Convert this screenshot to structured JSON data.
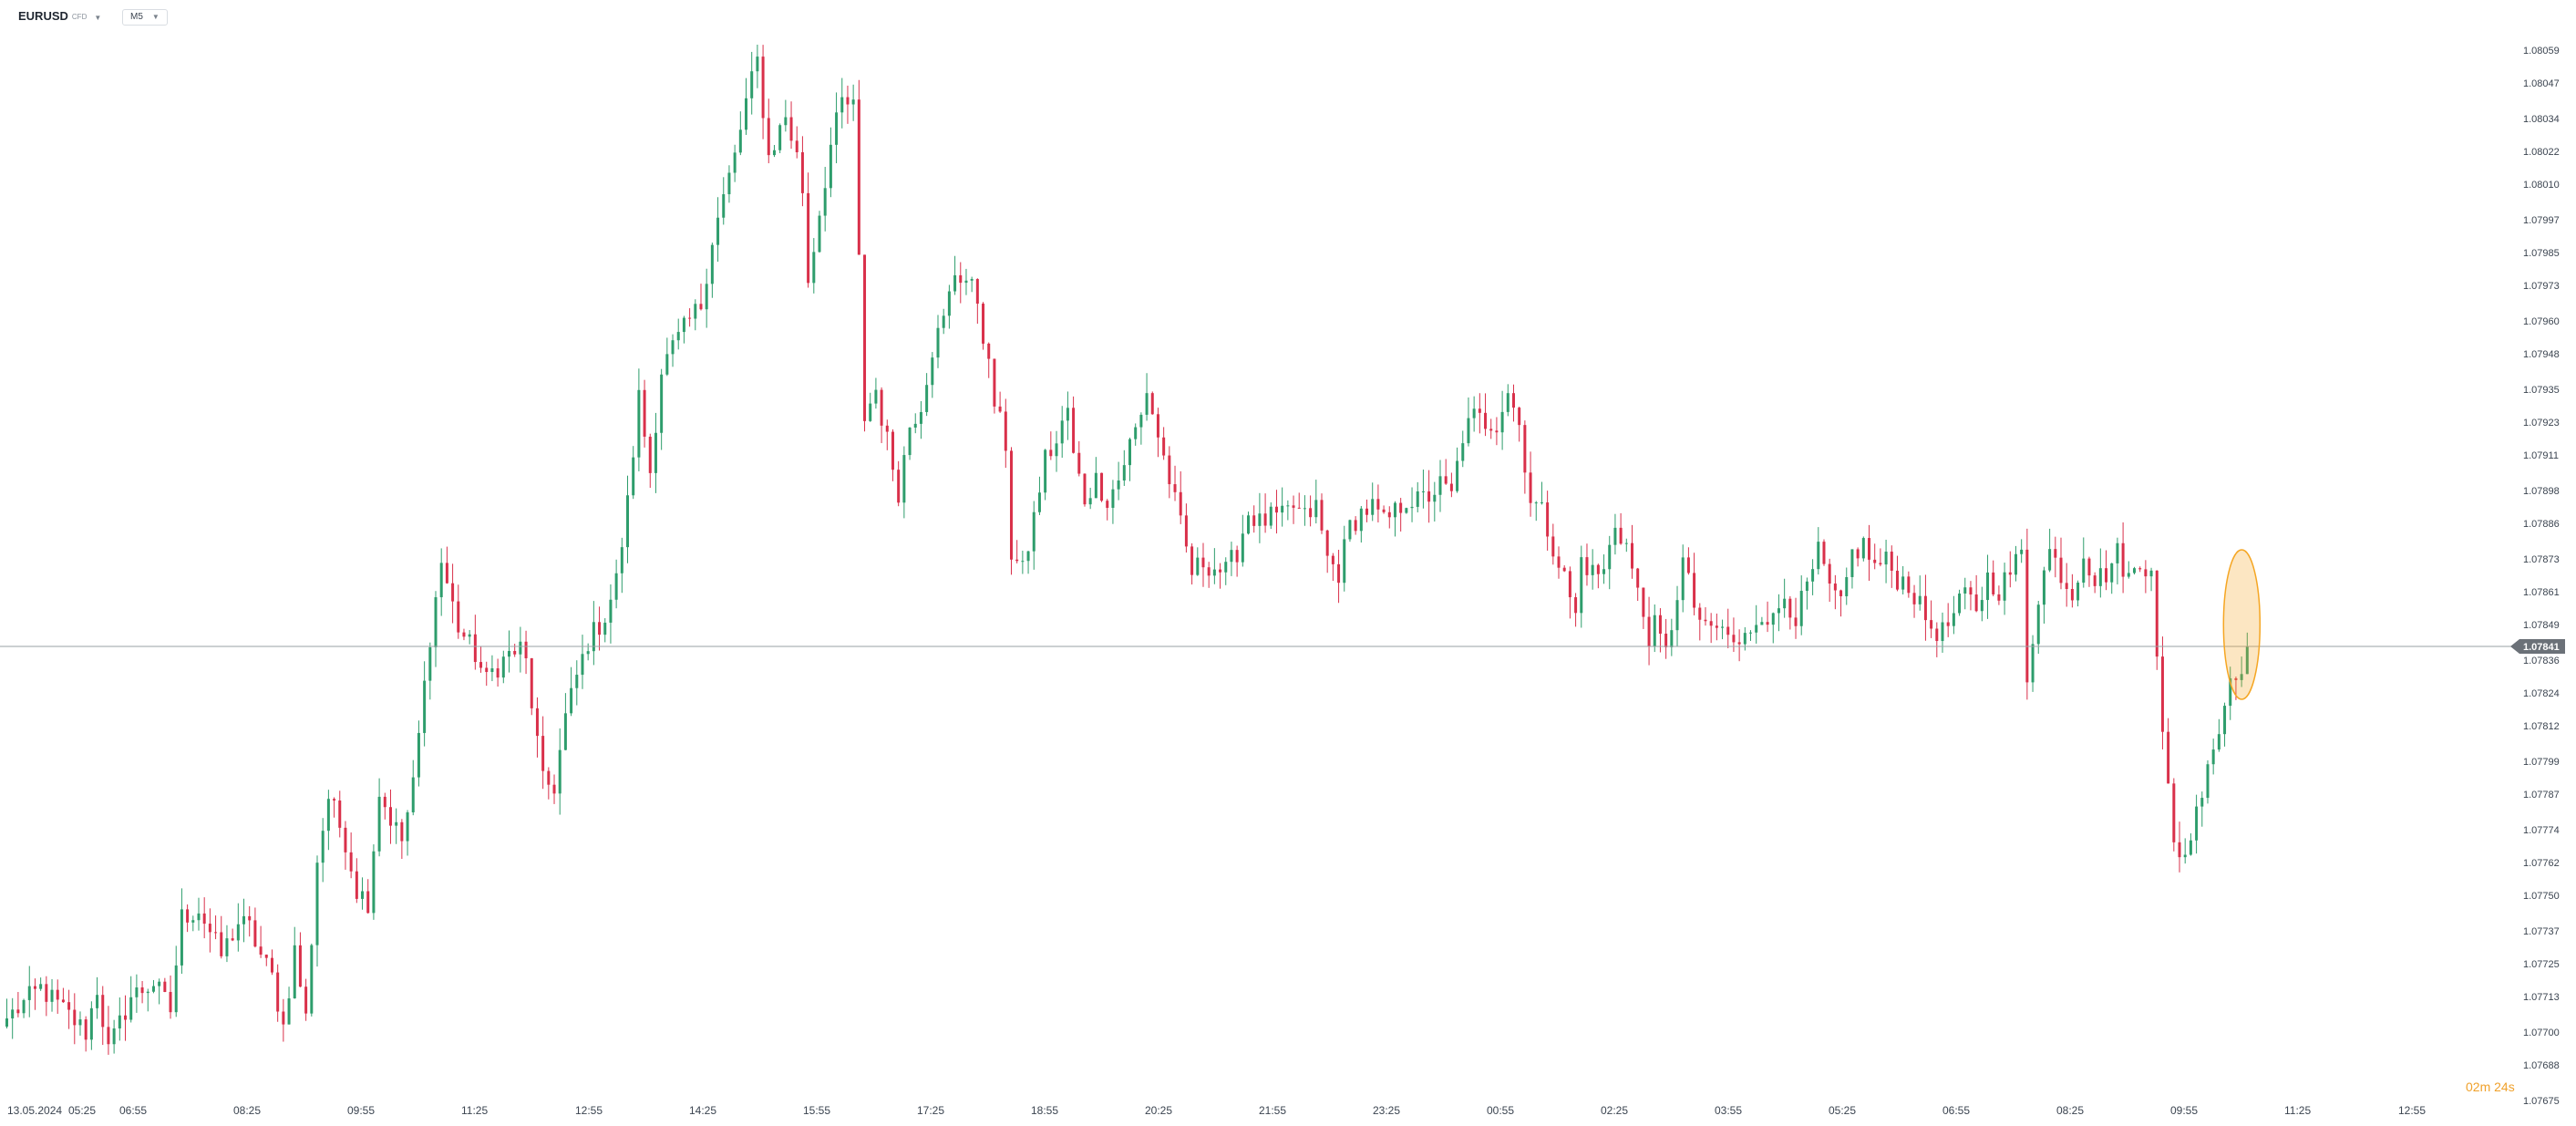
{
  "toolbar": {
    "symbol": "EURUSD",
    "symbol_suffix": "CFD",
    "timeframe": "M5",
    "caret_icon": "chevron-down-icon"
  },
  "countdown": "02m 24s",
  "chart_data": {
    "type": "candlestick",
    "yaxis": {
      "ticks": [
        "1.08059",
        "1.08047",
        "1.08034",
        "1.08022",
        "1.08010",
        "1.07997",
        "1.07985",
        "1.07973",
        "1.07960",
        "1.07948",
        "1.07935",
        "1.07923",
        "1.07911",
        "1.07898",
        "1.07886",
        "1.07873",
        "1.07861",
        "1.07849",
        "1.07836",
        "1.07824",
        "1.07812",
        "1.07799",
        "1.07787",
        "1.07774",
        "1.07762",
        "1.07750",
        "1.07737",
        "1.07725",
        "1.07713",
        "1.07700",
        "1.07688",
        "1.07675"
      ],
      "range": [
        1.07675,
        1.08059
      ],
      "side": "right"
    },
    "xaxis": {
      "ticks": [
        "13.05.2024",
        "05:25",
        "06:55",
        "08:25",
        "09:55",
        "11:25",
        "12:55",
        "14:25",
        "15:55",
        "17:25",
        "18:55",
        "20:25",
        "21:55",
        "23:25",
        "00:55",
        "02:25",
        "03:55",
        "05:25",
        "06:55",
        "08:25",
        "09:55",
        "11:25",
        "12:55"
      ]
    },
    "current_price": "1.07841",
    "colors": {
      "up": "#2e9d6c",
      "down": "#d9304a",
      "price_line": "#9aa0a6",
      "price_tag": "#6b7178",
      "highlight": "#f5a623"
    },
    "grid": false,
    "highlight": "last-candles",
    "close_path": [
      [
        0,
        1.07705
      ],
      [
        6,
        1.07716
      ],
      [
        10,
        1.07708
      ],
      [
        14,
        1.077
      ],
      [
        16,
        1.07716
      ],
      [
        18,
        1.07693
      ],
      [
        22,
        1.07713
      ],
      [
        26,
        1.07718
      ],
      [
        29,
        1.07708
      ],
      [
        31,
        1.07742
      ],
      [
        34,
        1.07745
      ],
      [
        38,
        1.07728
      ],
      [
        41,
        1.0774
      ],
      [
        43,
        1.07738
      ],
      [
        45,
        1.07728
      ],
      [
        47,
        1.0772
      ],
      [
        49,
        1.07702
      ],
      [
        51,
        1.0773
      ],
      [
        53,
        1.07705
      ],
      [
        55,
        1.07763
      ],
      [
        57,
        1.07786
      ],
      [
        60,
        1.0777
      ],
      [
        62,
        1.07752
      ],
      [
        64,
        1.07748
      ],
      [
        66,
        1.07788
      ],
      [
        68,
        1.07778
      ],
      [
        70,
        1.0777
      ],
      [
        72,
        1.0779
      ],
      [
        75,
        1.07845
      ],
      [
        77,
        1.07872
      ],
      [
        80,
        1.07848
      ],
      [
        83,
        1.07838
      ],
      [
        85,
        1.07828
      ],
      [
        86,
        1.07832
      ],
      [
        89,
        1.07838
      ],
      [
        91,
        1.0784
      ],
      [
        92,
        1.07835
      ],
      [
        95,
        1.07791
      ],
      [
        97,
        1.0779
      ],
      [
        99,
        1.07815
      ],
      [
        101,
        1.0783
      ],
      [
        103,
        1.07843
      ],
      [
        106,
        1.07852
      ],
      [
        108,
        1.07865
      ],
      [
        110,
        1.07893
      ],
      [
        112,
        1.07932
      ],
      [
        114,
        1.07905
      ],
      [
        116,
        1.07942
      ],
      [
        118,
        1.0795
      ],
      [
        121,
        1.0796
      ],
      [
        123,
        1.07966
      ],
      [
        125,
        1.0799
      ],
      [
        127,
        1.08005
      ],
      [
        129,
        1.0802
      ],
      [
        131,
        1.0804
      ],
      [
        133,
        1.08055
      ],
      [
        135,
        1.0802
      ],
      [
        136,
        1.08025
      ],
      [
        138,
        1.08035
      ],
      [
        140,
        1.0802
      ],
      [
        141,
        1.08008
      ],
      [
        142,
        1.07975
      ],
      [
        144,
        1.08
      ],
      [
        146,
        1.08024
      ],
      [
        148,
        1.0804
      ],
      [
        150,
        1.08038
      ],
      [
        152,
        1.07925
      ],
      [
        154,
        1.07935
      ],
      [
        155,
        1.07925
      ],
      [
        158,
        1.07898
      ],
      [
        160,
        1.07922
      ],
      [
        162,
        1.0793
      ],
      [
        164,
        1.0795
      ],
      [
        166,
        1.0796
      ],
      [
        168,
        1.07978
      ],
      [
        170,
        1.07975
      ],
      [
        172,
        1.07968
      ],
      [
        175,
        1.0793
      ],
      [
        177,
        1.07915
      ],
      [
        178,
        1.07875
      ],
      [
        180,
        1.07868
      ],
      [
        182,
        1.07888
      ],
      [
        184,
        1.0791
      ],
      [
        186,
        1.07915
      ],
      [
        188,
        1.07928
      ],
      [
        189,
        1.0791
      ],
      [
        191,
        1.07895
      ],
      [
        193,
        1.07902
      ],
      [
        195,
        1.07895
      ],
      [
        197,
        1.07902
      ],
      [
        199,
        1.07915
      ],
      [
        201,
        1.07925
      ],
      [
        202,
        1.07935
      ],
      [
        204,
        1.07918
      ],
      [
        206,
        1.07902
      ],
      [
        208,
        1.07885
      ],
      [
        210,
        1.07868
      ],
      [
        212,
        1.07872
      ],
      [
        214,
        1.0787
      ],
      [
        216,
        1.07868
      ],
      [
        218,
        1.07876
      ],
      [
        220,
        1.0789
      ],
      [
        222,
        1.07886
      ],
      [
        224,
        1.07888
      ],
      [
        226,
        1.07888
      ],
      [
        228,
        1.07892
      ],
      [
        230,
        1.07888
      ],
      [
        232,
        1.07892
      ],
      [
        234,
        1.07873
      ],
      [
        236,
        1.07868
      ],
      [
        238,
        1.07885
      ],
      [
        240,
        1.0789
      ],
      [
        242,
        1.07892
      ],
      [
        244,
        1.07886
      ],
      [
        246,
        1.0789
      ],
      [
        248,
        1.07895
      ],
      [
        250,
        1.07894
      ],
      [
        252,
        1.07896
      ],
      [
        254,
        1.079
      ],
      [
        256,
        1.07896
      ],
      [
        258,
        1.07918
      ],
      [
        260,
        1.07925
      ],
      [
        262,
        1.07923
      ],
      [
        264,
        1.07923
      ],
      [
        266,
        1.07935
      ],
      [
        268,
        1.07922
      ],
      [
        270,
        1.07895
      ],
      [
        272,
        1.0789
      ],
      [
        274,
        1.07878
      ],
      [
        276,
        1.07866
      ],
      [
        278,
        1.07852
      ],
      [
        279,
        1.07873
      ],
      [
        281,
        1.07868
      ],
      [
        283,
        1.07868
      ],
      [
        285,
        1.07886
      ],
      [
        287,
        1.07878
      ],
      [
        289,
        1.0786
      ],
      [
        291,
        1.07845
      ],
      [
        292,
        1.07848
      ],
      [
        294,
        1.07838
      ],
      [
        297,
        1.07872
      ],
      [
        299,
        1.07856
      ],
      [
        301,
        1.07846
      ],
      [
        303,
        1.07848
      ],
      [
        305,
        1.07845
      ],
      [
        307,
        1.0784
      ],
      [
        309,
        1.07848
      ],
      [
        311,
        1.07854
      ],
      [
        313,
        1.0785
      ],
      [
        315,
        1.0786
      ],
      [
        317,
        1.07852
      ],
      [
        319,
        1.07862
      ],
      [
        321,
        1.07875
      ],
      [
        323,
        1.07862
      ],
      [
        325,
        1.07855
      ],
      [
        327,
        1.07875
      ],
      [
        329,
        1.07878
      ],
      [
        331,
        1.0787
      ],
      [
        333,
        1.07872
      ],
      [
        335,
        1.07866
      ],
      [
        337,
        1.07864
      ],
      [
        339,
        1.07855
      ],
      [
        341,
        1.07848
      ],
      [
        343,
        1.07846
      ],
      [
        345,
        1.07852
      ],
      [
        347,
        1.0786
      ],
      [
        349,
        1.07855
      ],
      [
        351,
        1.07866
      ],
      [
        353,
        1.07862
      ],
      [
        355,
        1.07868
      ],
      [
        357,
        1.07875
      ],
      [
        358,
        1.0783
      ],
      [
        360,
        1.0786
      ],
      [
        362,
        1.07876
      ],
      [
        364,
        1.07868
      ],
      [
        366,
        1.0786
      ],
      [
        368,
        1.07876
      ],
      [
        370,
        1.07865
      ],
      [
        372,
        1.07868
      ],
      [
        374,
        1.07875
      ],
      [
        376,
        1.07866
      ],
      [
        378,
        1.0787
      ],
      [
        380,
        1.07872
      ],
      [
        382,
        1.07808
      ],
      [
        384,
        1.07768
      ],
      [
        386,
        1.07765
      ],
      [
        388,
        1.0778
      ],
      [
        390,
        1.078
      ],
      [
        392,
        1.0781
      ],
      [
        394,
        1.0783
      ],
      [
        396,
        1.07835
      ],
      [
        397,
        1.07841
      ]
    ]
  }
}
